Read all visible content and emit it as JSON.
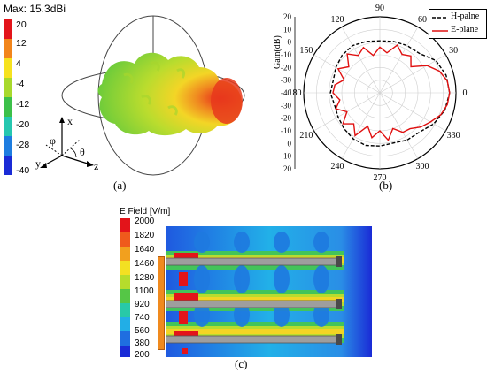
{
  "panel_a": {
    "max_label": "Max: 15.3dBi",
    "colorbar_labels": [
      "20",
      "12",
      "4",
      "-4",
      "-12",
      "-20",
      "-28",
      "-40"
    ],
    "axis_labels": {
      "x": "x",
      "y": "y",
      "z": "z",
      "phi": "φ",
      "theta": "θ"
    },
    "caption": "(a)"
  },
  "panel_b": {
    "caption": "(b)",
    "ylabel": "Gain(dB)",
    "legend": [
      {
        "name": "H-palne",
        "color": "#000000",
        "style": "dashed"
      },
      {
        "name": "E-plane",
        "color": "#e01010",
        "style": "solid"
      }
    ],
    "angle_labels": [
      "90",
      "60",
      "30",
      "0",
      "330",
      "300",
      "270",
      "240",
      "210",
      "180",
      "150",
      "120"
    ],
    "radial_labels": [
      "20",
      "10",
      "0",
      "-10",
      "-20",
      "-30",
      "-40",
      "-30",
      "-20",
      "-10",
      "0",
      "10",
      "20"
    ]
  },
  "panel_c": {
    "caption": "(c)",
    "title": "E Field [V/m]",
    "colorbar_labels": [
      "2000",
      "1820",
      "1640",
      "1460",
      "1280",
      "1100",
      "920",
      "740",
      "560",
      "380",
      "200"
    ]
  },
  "chart_data": {
    "type": "polar",
    "ylabel": "Gain(dB)",
    "radial_range": [
      -40,
      20
    ],
    "angle_ticks_deg": [
      0,
      30,
      60,
      90,
      120,
      150,
      180,
      210,
      240,
      270,
      300,
      330
    ],
    "series": [
      {
        "name": "H-palne",
        "angle_deg": [
          0,
          15,
          30,
          45,
          60,
          75,
          90,
          105,
          120,
          135,
          150,
          165,
          180,
          195,
          210,
          225,
          240,
          255,
          270,
          285,
          300,
          315,
          330,
          345
        ],
        "gain_db": [
          15,
          14,
          11,
          4,
          3,
          2,
          1,
          2,
          3,
          2,
          0,
          -2,
          -1,
          -3,
          -2,
          0,
          2,
          3,
          2,
          1,
          3,
          4,
          9,
          13
        ]
      },
      {
        "name": "E-plane",
        "angle_deg": [
          0,
          10,
          20,
          30,
          40,
          50,
          60,
          70,
          80,
          90,
          100,
          110,
          120,
          130,
          140,
          150,
          160,
          170,
          180,
          190,
          200,
          210,
          220,
          230,
          240,
          250,
          260,
          270,
          280,
          290,
          300,
          310,
          320,
          330,
          340,
          350
        ],
        "gain_db": [
          15,
          14,
          10,
          3,
          -8,
          -2,
          -5,
          0,
          -8,
          -4,
          -10,
          -2,
          -6,
          0,
          -8,
          -2,
          -10,
          -4,
          -3,
          -8,
          -3,
          -10,
          -2,
          -8,
          -1,
          -12,
          -4,
          -10,
          -2,
          -10,
          -4,
          -3,
          2,
          6,
          11,
          14
        ]
      }
    ]
  }
}
